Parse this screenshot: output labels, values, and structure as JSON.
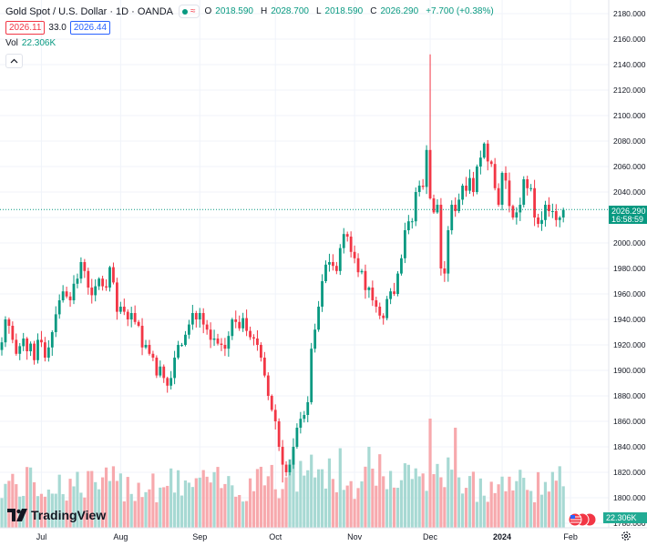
{
  "header": {
    "title": "Gold Spot / U.S. Dollar · 1D · OANDA",
    "ohlc": {
      "o_label": "O",
      "o_value": "2018.590",
      "h_label": "H",
      "h_value": "2028.700",
      "l_label": "L",
      "l_value": "2018.590",
      "c_label": "C",
      "c_value": "2026.290",
      "change": "+7.700 (+0.38%)"
    },
    "sell_price": "2026.11",
    "spread": "33.0",
    "buy_price": "2026.44",
    "vol_label": "Vol",
    "vol_value": "22.306K"
  },
  "brand": {
    "logo_text": "TradingView"
  },
  "icons": {
    "status": "market-open-dot-icon",
    "indicator": "wave-icon",
    "collapse": "chevron-up-icon",
    "logo": "tradingview-logo-icon",
    "flag": "us-flag-icon",
    "settings": "gear-icon"
  },
  "colors": {
    "up": "#089981",
    "down": "#f23645",
    "up_volume": "#a7d9d3",
    "down_volume": "#f7a9ad",
    "last_price_tag": "#089981",
    "volume_tag": "#22ab94"
  },
  "chart_data": {
    "type": "candlestick",
    "symbol": "Gold Spot / U.S. Dollar",
    "interval": "1D",
    "exchange": "OANDA",
    "y_ticks": [
      1780,
      1800,
      1820,
      1840,
      1860,
      1880,
      1900,
      1920,
      1940,
      1960,
      1980,
      2000,
      2020,
      2040,
      2060,
      2080,
      2100,
      2120,
      2140,
      2160,
      2180
    ],
    "y_tick_labels": [
      "1780.000",
      "1800.000",
      "1820.000",
      "1840.000",
      "1860.000",
      "1880.000",
      "1900.000",
      "1920.000",
      "1940.000",
      "1960.000",
      "1980.000",
      "2000.000",
      "2020.000",
      "2040.000",
      "2060.000",
      "2080.000",
      "2100.000",
      "2120.000",
      "2140.000",
      "2160.000",
      "2180.000"
    ],
    "ylim": [
      1775,
      2190
    ],
    "x_labels": [
      {
        "label": "Jul",
        "index": 11
      },
      {
        "label": "Aug",
        "index": 33
      },
      {
        "label": "Sep",
        "index": 55
      },
      {
        "label": "Oct",
        "index": 76
      },
      {
        "label": "Nov",
        "index": 98
      },
      {
        "label": "Dec",
        "index": 119
      },
      {
        "label": "2024",
        "index": 139
      },
      {
        "label": "Feb",
        "index": 158
      }
    ],
    "last_price": "2026.290",
    "countdown": "16:58:59",
    "volume_label": "22.306K",
    "closes": [
      1922,
      1940,
      1935,
      1924,
      1913,
      1919,
      1925,
      1915,
      1921,
      1908,
      1924,
      1922,
      1910,
      1918,
      1930,
      1944,
      1955,
      1962,
      1958,
      1955,
      1968,
      1972,
      1985,
      1978,
      1965,
      1959,
      1966,
      1972,
      1966,
      1965,
      1981,
      1969,
      1946,
      1950,
      1946,
      1940,
      1945,
      1938,
      1935,
      1918,
      1920,
      1913,
      1910,
      1896,
      1903,
      1894,
      1888,
      1894,
      1910,
      1920,
      1920,
      1928,
      1936,
      1945,
      1940,
      1945,
      1936,
      1932,
      1924,
      1925,
      1921,
      1920,
      1917,
      1927,
      1940,
      1938,
      1933,
      1941,
      1931,
      1926,
      1925,
      1920,
      1910,
      1896,
      1880,
      1869,
      1860,
      1840,
      1826,
      1820,
      1826,
      1840,
      1855,
      1862,
      1865,
      1875,
      1917,
      1932,
      1950,
      1970,
      1983,
      1985,
      1982,
      1978,
      1996,
      2007,
      2005,
      1993,
      1988,
      1977,
      1978,
      1963,
      1965,
      1955,
      1950,
      1943,
      1941,
      1956,
      1962,
      1960,
      1976,
      1988,
      2010,
      2017,
      2017,
      2040,
      2045,
      2044,
      2073,
      2035,
      2024,
      2030,
      1980,
      1976,
      2010,
      2030,
      2025,
      2034,
      2045,
      2041,
      2051,
      2040,
      2060,
      2067,
      2078,
      2064,
      2062,
      2043,
      2030,
      2055,
      2049,
      2029,
      2020,
      2024,
      2030,
      2050,
      2043,
      2043,
      2020,
      2015,
      2018,
      2030,
      2025,
      2025,
      2018,
      2020,
      2026
    ]
  }
}
